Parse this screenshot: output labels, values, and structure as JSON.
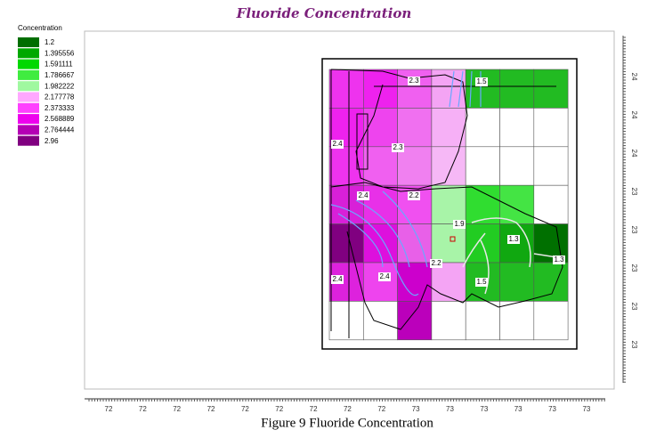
{
  "title": "Fluoride Concentration",
  "legend": {
    "title": "Concentration",
    "entries": [
      {
        "label": "1.2",
        "color": "#006e00"
      },
      {
        "label": "1.395556",
        "color": "#00a800"
      },
      {
        "label": "1.591111",
        "color": "#00d800"
      },
      {
        "label": "1.786667",
        "color": "#40ec40"
      },
      {
        "label": "1.982222",
        "color": "#a0f8a0"
      },
      {
        "label": "2.177778",
        "color": "#ffa8ff"
      },
      {
        "label": "2.373333",
        "color": "#ff40ff"
      },
      {
        "label": "2.568889",
        "color": "#ee00ee"
      },
      {
        "label": "2.764444",
        "color": "#b400b4"
      },
      {
        "label": "2.96",
        "color": "#800080"
      }
    ]
  },
  "x_axis": {
    "labels": [
      "72",
      "72",
      "72",
      "72",
      "72",
      "72",
      "72",
      "72",
      "72",
      "73",
      "73",
      "73",
      "73",
      "73",
      "73"
    ]
  },
  "y_axis": {
    "labels": [
      "24",
      "24",
      "24",
      "23",
      "23",
      "23",
      "23",
      "23"
    ]
  },
  "contour_labels": [
    "2.3",
    "1.5",
    "2.4",
    "2.3",
    "2.4",
    "2.2",
    "1.9",
    "1.3",
    "1.3",
    "2.2",
    "2.4",
    "2.4",
    "1.5"
  ],
  "caption": "Figure 9 Fluoride Concentration"
}
